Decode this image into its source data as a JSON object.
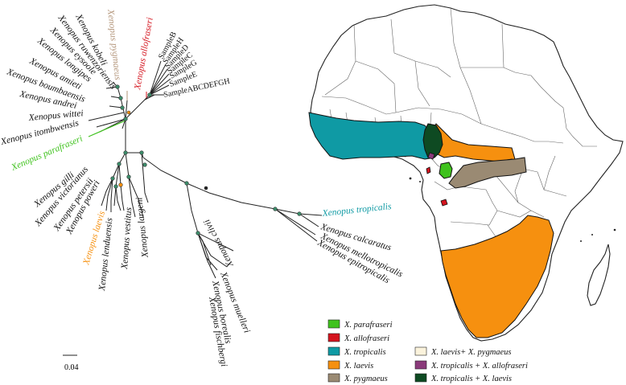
{
  "colors": {
    "parafraseri": "#3fc21d",
    "allofraseri": "#d4141e",
    "tropicalis": "#0f9aa4",
    "laevis": "#f6900f",
    "pygmaeus": "#9a8a73",
    "laevis_pygmaeus": "#fbf3dc",
    "tropicalis_allofraseri": "#8a3a7a",
    "tropicalis_laevis": "#0e4a22",
    "tree_node": "#3d8c6a"
  },
  "tree": {
    "tips": {
      "kobeli": "Xenopus kobeli",
      "ruwenzoriensis": "Xenopus ruwenzoriensis",
      "eysoole": "Xenopus eysoole",
      "longipes": "Xenopus longipes",
      "amieti": "Xenopus amieti",
      "boumbaensis": "Xenopus boumbaensis",
      "andrei": "Xenopus andrei",
      "wittei": "Xenopus wittei",
      "itombwensis": "Xenopus itombwensis",
      "pygmaeus": "Xenopus pygmaeus",
      "allofraseri": "Xenopus allofraseri",
      "parafraseri": "Xenopus parafraseri",
      "gilli": "Xenopus gilli",
      "victorianus": "Xenopus victorianus",
      "petersii": "Xenopus petersii",
      "poweri": "Xenopus poweri",
      "laevis": "Xenopus laevis",
      "lenduensis": "Xenopus lenduensis",
      "vestitus": "Xenopus vestitus",
      "largeni": "Xenopus largeni",
      "clivii": "Xenopus clivii",
      "muelleri": "Xenopus muelleri",
      "borealis": "Xenopus borealis",
      "fischbergi": "Xenopus fischbergi",
      "tropicalis": "Xenopus tropicalis",
      "calcaratus": "Xenopus calcaratus",
      "mellotropicalis": "Xenopus mellotropicalis",
      "epitropicalis": "Xenopus epitropicalis"
    },
    "samples": [
      "SampleB",
      "SampleH",
      "SampleD",
      "SampleC",
      "SampleG",
      "SampleE",
      "SampleABCDEFGH"
    ],
    "scale_bar_label": "0.04"
  },
  "legend": {
    "items": [
      {
        "label": "X. parafraseri",
        "color": "#3fc21d"
      },
      {
        "label": "X. allofraseri",
        "color": "#d4141e"
      },
      {
        "label": "X. tropicalis",
        "color": "#0f9aa4"
      },
      {
        "label": "X. laevis",
        "color": "#f6900f"
      },
      {
        "label": "X. pygmaeus",
        "color": "#9a8a73"
      },
      {
        "label": "X. laevis+ X. pygmaeus",
        "color": "#fbf3dc"
      },
      {
        "label": "X. tropicalis + X. allofraseri",
        "color": "#8a3a7a"
      },
      {
        "label": "X. tropicalis + X. laevis",
        "color": "#0e4a22"
      }
    ]
  }
}
